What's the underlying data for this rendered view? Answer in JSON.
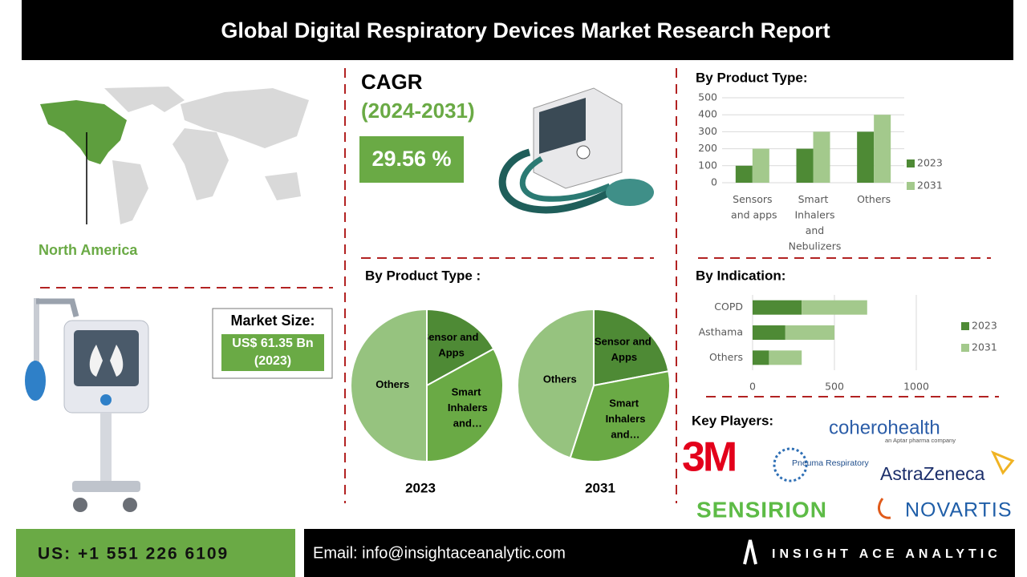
{
  "header": {
    "title": "Global Digital Respiratory Devices Market  Research Report"
  },
  "region": {
    "label": "North America"
  },
  "cagr": {
    "label": "CAGR",
    "period": "(2024-2031)",
    "value": "29.56 %"
  },
  "market_size": {
    "label": "Market Size:",
    "value": "US$ 61.35 Bn",
    "year": "(2023)"
  },
  "key_players": {
    "title": "Key Players:",
    "logos": [
      "3M",
      "Pneuma Respiratory",
      "coherohealth",
      "an Aptar pharma company",
      "AstraZeneca",
      "SENSIRION",
      "NOVARTIS"
    ]
  },
  "footer": {
    "phone": "US: +1 551 226 6109",
    "email": "Email: info@insightaceanalytic.com",
    "brand": "INSIGHT ACE ANALYTIC"
  },
  "chart_data": [
    {
      "type": "bar",
      "title": "By Product Type:",
      "categories": [
        "Sensors and apps",
        "Smart Inhalers and Nebulizers",
        "Others"
      ],
      "series": [
        {
          "name": "2023",
          "color": "#4e8a35",
          "values": [
            100,
            200,
            300
          ]
        },
        {
          "name": "2031",
          "color": "#a3c98c",
          "values": [
            200,
            300,
            400
          ]
        }
      ],
      "ylim": [
        0,
        500
      ],
      "yticks": [
        0,
        100,
        200,
        300,
        400,
        500
      ],
      "grid": true,
      "legend": "right"
    },
    {
      "type": "pie",
      "title": "By Product Type :",
      "subtitle": "2023",
      "categories": [
        "Sensor and Apps",
        "Smart Inhalers and…",
        "Others"
      ],
      "values": [
        17,
        33,
        50
      ],
      "colors": [
        "#4e8a35",
        "#6aaa45",
        "#96c37f"
      ]
    },
    {
      "type": "pie",
      "subtitle": "2031",
      "categories": [
        "Sensor and Apps",
        "Smart Inhalers and…",
        "Others"
      ],
      "values": [
        22,
        33,
        45
      ],
      "colors": [
        "#4e8a35",
        "#6aaa45",
        "#96c37f"
      ]
    },
    {
      "type": "bar",
      "orientation": "horizontal",
      "stacked": true,
      "title": "By Indication:",
      "categories": [
        "COPD",
        "Asthama",
        "Others"
      ],
      "series": [
        {
          "name": "2023",
          "color": "#4e8a35",
          "values": [
            300,
            200,
            100
          ]
        },
        {
          "name": "2031",
          "color": "#a3c98c",
          "values": [
            400,
            300,
            200
          ]
        }
      ],
      "xlim": [
        0,
        1000
      ],
      "xticks": [
        0,
        500,
        1000
      ],
      "grid": true,
      "legend": "right"
    }
  ]
}
